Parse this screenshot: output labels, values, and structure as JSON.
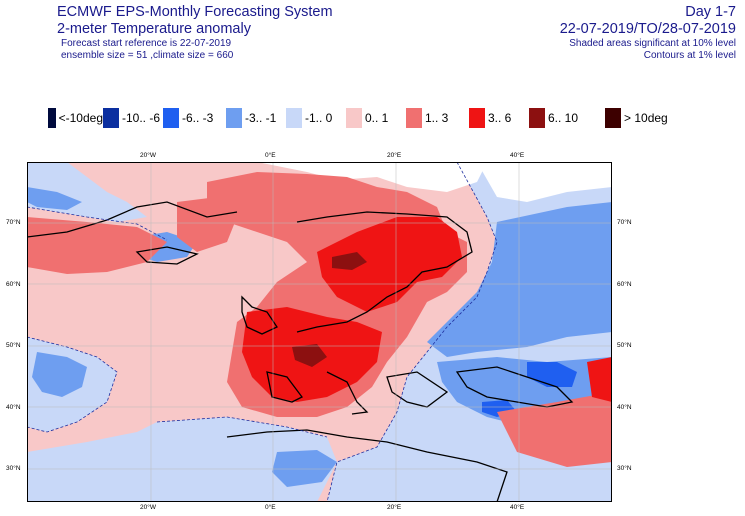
{
  "header": {
    "system": "ECMWF EPS-Monthly Forecasting System",
    "product": "2-meter Temperature anomaly",
    "start_ref": "Forecast start reference is 22-07-2019",
    "ensemble": "ensemble size = 51  ,climate size = 660",
    "day_range": "Day 1-7",
    "period": "22-07-2019/TO/28-07-2019",
    "note1": "Shaded areas significant at 10% level",
    "note2": "Contours at 1% level"
  },
  "legend": [
    {
      "label": "<-10deg",
      "color": "#000a3d"
    },
    {
      "label": "-10.. -6",
      "color": "#0b2fa0"
    },
    {
      "label": "-6.. -3",
      "color": "#1f5ff0"
    },
    {
      "label": "-3.. -1",
      "color": "#6e9ef0"
    },
    {
      "label": "-1.. 0",
      "color": "#c8d8f8"
    },
    {
      "label": "0.. 1",
      "color": "#f8c8c8"
    },
    {
      "label": "1.. 3",
      "color": "#f07070"
    },
    {
      "label": "3.. 6",
      "color": "#ef1414"
    },
    {
      "label": "6.. 10",
      "color": "#8c1010"
    },
    {
      "label": "> 10deg",
      "color": "#3d0000"
    }
  ],
  "axes": {
    "top_lon": [
      "20°W",
      "0°E",
      "20°E",
      "40°E"
    ],
    "bottom_lon": [
      "20°W",
      "0°E",
      "20°E",
      "40°E"
    ],
    "left_lat": [
      "70°N",
      "60°N",
      "50°N",
      "40°N",
      "30°N"
    ],
    "right_lat": [
      "70°N",
      "60°N",
      "50°N",
      "40°N",
      "30°N"
    ]
  }
}
